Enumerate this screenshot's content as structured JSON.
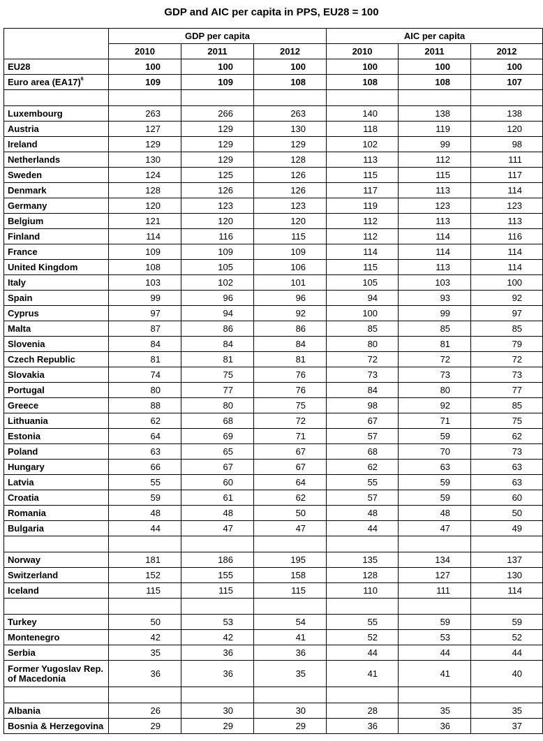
{
  "title": "GDP and AIC per capita in PPS, EU28 = 100",
  "header": {
    "groups": [
      "GDP per capita",
      "AIC per capita"
    ],
    "years": [
      "2010",
      "2011",
      "2012",
      "2010",
      "2011",
      "2012"
    ]
  },
  "sections": [
    [
      {
        "label": "EU28",
        "values": [
          "100",
          "100",
          "100",
          "100",
          "100",
          "100"
        ],
        "bold": true
      },
      {
        "label": "Euro area (EA17)",
        "sup": "6",
        "values": [
          "109",
          "109",
          "108",
          "108",
          "108",
          "107"
        ],
        "bold": true
      }
    ],
    [
      {
        "label": "Luxembourg",
        "values": [
          "263",
          "266",
          "263",
          "140",
          "138",
          "138"
        ]
      },
      {
        "label": "Austria",
        "values": [
          "127",
          "129",
          "130",
          "118",
          "119",
          "120"
        ]
      },
      {
        "label": "Ireland",
        "values": [
          "129",
          "129",
          "129",
          "102",
          "99",
          "98"
        ]
      },
      {
        "label": "Netherlands",
        "values": [
          "130",
          "129",
          "128",
          "113",
          "112",
          "111"
        ]
      },
      {
        "label": "Sweden",
        "values": [
          "124",
          "125",
          "126",
          "115",
          "115",
          "117"
        ]
      },
      {
        "label": "Denmark",
        "values": [
          "128",
          "126",
          "126",
          "117",
          "113",
          "114"
        ]
      },
      {
        "label": "Germany",
        "values": [
          "120",
          "123",
          "123",
          "119",
          "123",
          "123"
        ]
      },
      {
        "label": "Belgium",
        "values": [
          "121",
          "120",
          "120",
          "112",
          "113",
          "113"
        ]
      },
      {
        "label": "Finland",
        "values": [
          "114",
          "116",
          "115",
          "112",
          "114",
          "116"
        ]
      },
      {
        "label": "France",
        "values": [
          "109",
          "109",
          "109",
          "114",
          "114",
          "114"
        ]
      },
      {
        "label": "United Kingdom",
        "values": [
          "108",
          "105",
          "106",
          "115",
          "113",
          "114"
        ]
      },
      {
        "label": "Italy",
        "values": [
          "103",
          "102",
          "101",
          "105",
          "103",
          "100"
        ]
      },
      {
        "label": "Spain",
        "values": [
          "99",
          "96",
          "96",
          "94",
          "93",
          "92"
        ]
      },
      {
        "label": "Cyprus",
        "values": [
          "97",
          "94",
          "92",
          "100",
          "99",
          "97"
        ]
      },
      {
        "label": "Malta",
        "values": [
          "87",
          "86",
          "86",
          "85",
          "85",
          "85"
        ]
      },
      {
        "label": "Slovenia",
        "values": [
          "84",
          "84",
          "84",
          "80",
          "81",
          "79"
        ]
      },
      {
        "label": "Czech Republic",
        "values": [
          "81",
          "81",
          "81",
          "72",
          "72",
          "72"
        ]
      },
      {
        "label": "Slovakia",
        "values": [
          "74",
          "75",
          "76",
          "73",
          "73",
          "73"
        ]
      },
      {
        "label": "Portugal",
        "values": [
          "80",
          "77",
          "76",
          "84",
          "80",
          "77"
        ]
      },
      {
        "label": "Greece",
        "values": [
          "88",
          "80",
          "75",
          "98",
          "92",
          "85"
        ]
      },
      {
        "label": "Lithuania",
        "values": [
          "62",
          "68",
          "72",
          "67",
          "71",
          "75"
        ]
      },
      {
        "label": "Estonia",
        "values": [
          "64",
          "69",
          "71",
          "57",
          "59",
          "62"
        ]
      },
      {
        "label": "Poland",
        "values": [
          "63",
          "65",
          "67",
          "68",
          "70",
          "73"
        ]
      },
      {
        "label": "Hungary",
        "values": [
          "66",
          "67",
          "67",
          "62",
          "63",
          "63"
        ]
      },
      {
        "label": "Latvia",
        "values": [
          "55",
          "60",
          "64",
          "55",
          "59",
          "63"
        ]
      },
      {
        "label": "Croatia",
        "values": [
          "59",
          "61",
          "62",
          "57",
          "59",
          "60"
        ]
      },
      {
        "label": "Romania",
        "values": [
          "48",
          "48",
          "50",
          "48",
          "48",
          "50"
        ]
      },
      {
        "label": "Bulgaria",
        "values": [
          "44",
          "47",
          "47",
          "44",
          "47",
          "49"
        ]
      }
    ],
    [
      {
        "label": "Norway",
        "values": [
          "181",
          "186",
          "195",
          "135",
          "134",
          "137"
        ]
      },
      {
        "label": "Switzerland",
        "values": [
          "152",
          "155",
          "158",
          "128",
          "127",
          "130"
        ]
      },
      {
        "label": "Iceland",
        "values": [
          "115",
          "115",
          "115",
          "110",
          "111",
          "114"
        ]
      }
    ],
    [
      {
        "label": "Turkey",
        "values": [
          "50",
          "53",
          "54",
          "55",
          "59",
          "59"
        ]
      },
      {
        "label": "Montenegro",
        "values": [
          "42",
          "42",
          "41",
          "52",
          "53",
          "52"
        ]
      },
      {
        "label": "Serbia",
        "values": [
          "35",
          "36",
          "36",
          "44",
          "44",
          "44"
        ]
      },
      {
        "label": "Former Yugoslav Rep. of Macedonia",
        "values": [
          "36",
          "36",
          "35",
          "41",
          "41",
          "40"
        ],
        "tall": true
      }
    ],
    [
      {
        "label": "Albania",
        "values": [
          "26",
          "30",
          "30",
          "28",
          "35",
          "35"
        ]
      },
      {
        "label": "Bosnia & Herzegovina",
        "values": [
          "29",
          "29",
          "29",
          "36",
          "36",
          "37"
        ]
      }
    ]
  ]
}
